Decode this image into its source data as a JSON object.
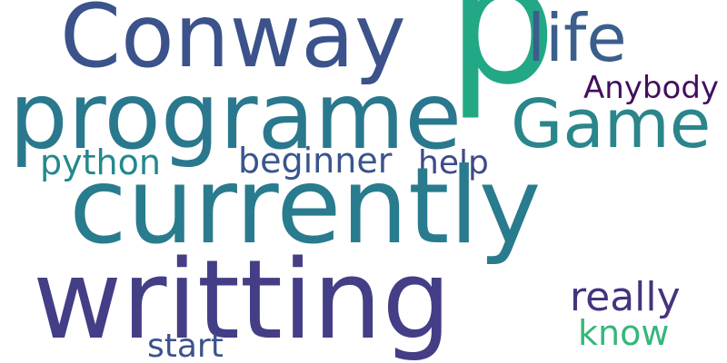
{
  "words": [
    {
      "text": "p",
      "color": "#22a884"
    },
    {
      "text": "Conway",
      "color": "#3b528b"
    },
    {
      "text": "life",
      "color": "#3b5e8c"
    },
    {
      "text": "programe",
      "color": "#2a788e"
    },
    {
      "text": "Game",
      "color": "#2a868b"
    },
    {
      "text": "Anybody",
      "color": "#440f5c"
    },
    {
      "text": "python",
      "color": "#23888e"
    },
    {
      "text": "beginner",
      "color": "#39568c"
    },
    {
      "text": "help",
      "color": "#3e4a89"
    },
    {
      "text": "currently",
      "color": "#297b8e"
    },
    {
      "text": "writting",
      "color": "#433e85"
    },
    {
      "text": "really",
      "color": "#46337e"
    },
    {
      "text": "know",
      "color": "#35b779"
    },
    {
      "text": "start",
      "color": "#3b528b"
    }
  ]
}
